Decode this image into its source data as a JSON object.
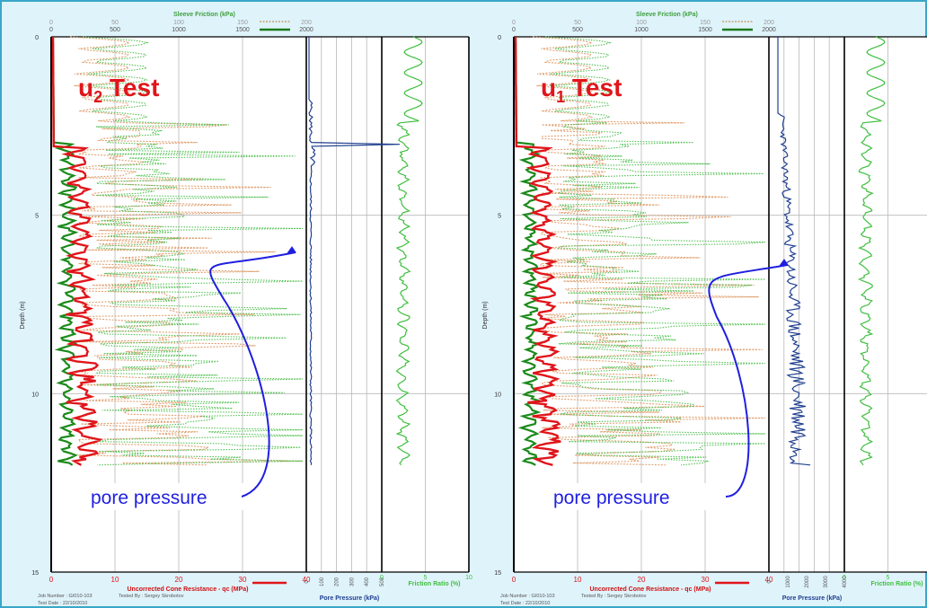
{
  "chart_data": [
    {
      "type": "line",
      "test_label_main": "u",
      "test_label_sub": "2",
      "test_label_rest": " Test",
      "annotation": "pore pressure",
      "sleeve_title": "Sleeve Friction (kPa)",
      "sleeve_ticks_top": [
        "0",
        "50",
        "100",
        "150",
        "200"
      ],
      "sleeve_ticks_bottom": [
        "0",
        "500",
        "1000",
        "1500",
        "2000"
      ],
      "cone_title": "Uncorrected Cone Resistance - qc (MPa)",
      "cone_ticks": [
        "0",
        "10",
        "20",
        "30",
        "40"
      ],
      "pore_title": "Pore Pressure (kPa)",
      "pore_ticks": [
        "0",
        "100",
        "200",
        "300",
        "400",
        "500"
      ],
      "ratio_title": "Friction Ratio (%)",
      "ratio_ticks": [
        "0",
        "5",
        "10"
      ],
      "depth_label": "Depth (m)",
      "depth_ticks": [
        "0",
        "5",
        "10",
        "15"
      ],
      "footer_job": "Job Number : GI010-103",
      "footer_date": "Test Date : 22/10/2010",
      "footer_tested": "Tested By : Sergey Skrobotov",
      "colors": {
        "cone": "#e0151b",
        "friction_low": "#1a8a1a",
        "pore": "#1f3f8f",
        "ratio": "#3fbf3f",
        "sleeve": "#d08030",
        "arrow": "#1f1fe0"
      }
    },
    {
      "type": "line",
      "test_label_main": "u",
      "test_label_sub": "1",
      "test_label_rest": " Test",
      "annotation": "pore pressure",
      "sleeve_title": "Sleeve Friction (kPa)",
      "sleeve_ticks_top": [
        "0",
        "50",
        "100",
        "150",
        "200"
      ],
      "sleeve_ticks_bottom": [
        "0",
        "500",
        "1000",
        "1500",
        "2000"
      ],
      "cone_title": "Uncorrected Cone Resistance - qc (MPa)",
      "cone_ticks": [
        "0",
        "10",
        "20",
        "30",
        "40"
      ],
      "pore_title": "Pore Pressure (kPa)",
      "pore_ticks": [
        "0",
        "1000",
        "2000",
        "3000",
        "4000"
      ],
      "ratio_title": "Friction Ratio (%)",
      "ratio_ticks": [
        "0",
        "5",
        "10"
      ],
      "depth_label": "Depth (m)",
      "depth_ticks": [
        "0",
        "5",
        "10",
        "15"
      ],
      "footer_job": "Job Number : GI010-103",
      "footer_date": "Test Date : 22/10/2010",
      "footer_tested": "Tested By : Sergey Skrobotov",
      "colors": {
        "cone": "#e0151b",
        "friction_low": "#1a8a1a",
        "pore": "#1f3f8f",
        "ratio": "#3fbf3f",
        "sleeve": "#d08030",
        "arrow": "#1f1fe0"
      }
    }
  ]
}
